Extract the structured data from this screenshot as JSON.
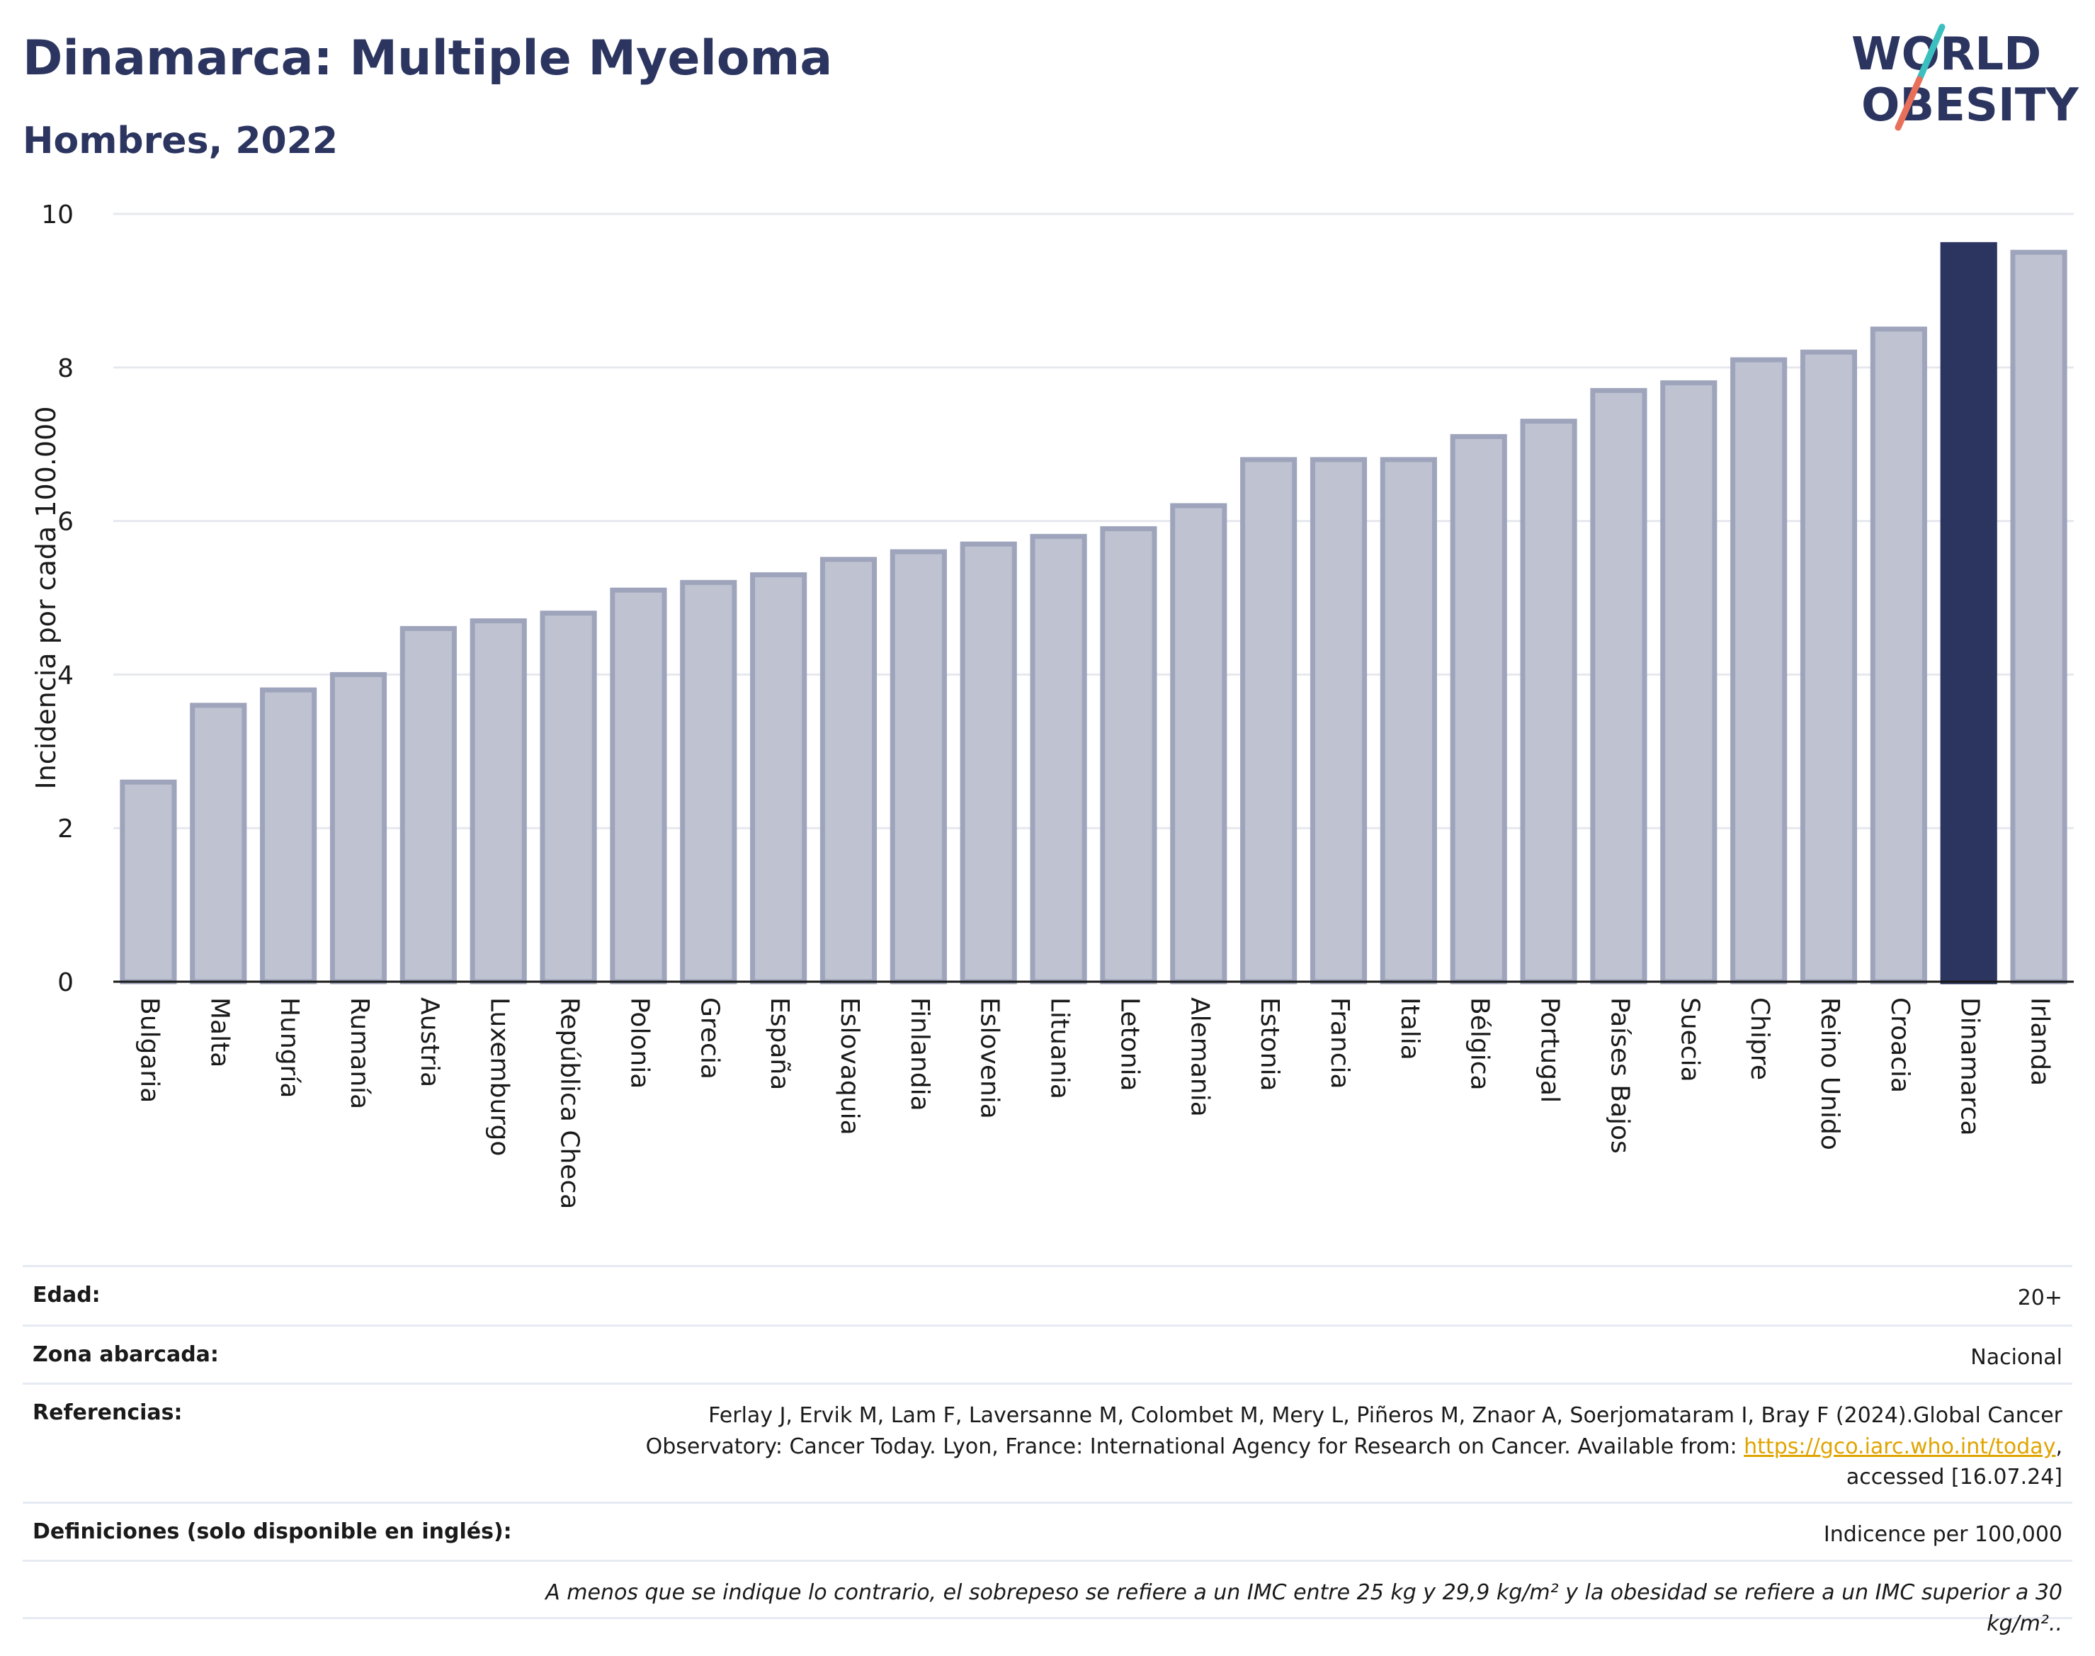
{
  "header": {
    "title": "Dinamarca: Multiple Myeloma",
    "subtitle": "Hombres, 2022"
  },
  "logo": {
    "line1": "WORLD",
    "line2": "OBESITY",
    "colors": {
      "text": "#2b3560",
      "slash_top": "#3bbfbf",
      "slash_bottom": "#e8705a"
    }
  },
  "chart_data": {
    "type": "bar",
    "categories": [
      "Bulgaria",
      "Malta",
      "Hungría",
      "Rumanía",
      "Austria",
      "Luxemburgo",
      "República Checa",
      "Polonia",
      "Grecia",
      "España",
      "Eslovaquia",
      "Finlandia",
      "Eslovenia",
      "Lituania",
      "Letonia",
      "Alemania",
      "Estonia",
      "Francia",
      "Italia",
      "Bélgica",
      "Portugal",
      "Países Bajos",
      "Suecia",
      "Chipre",
      "Reino Unido",
      "Croacia",
      "Dinamarca",
      "Irlanda"
    ],
    "values": [
      2.6,
      3.6,
      3.8,
      4.0,
      4.6,
      4.7,
      4.8,
      5.1,
      5.2,
      5.3,
      5.5,
      5.6,
      5.7,
      5.8,
      5.9,
      6.2,
      6.8,
      6.8,
      6.8,
      7.1,
      7.3,
      7.7,
      7.8,
      8.1,
      8.2,
      8.5,
      9.6,
      9.5
    ],
    "highlight": "Dinamarca",
    "ylabel": "Incidencia por cada 100.000",
    "ylim": [
      0,
      10
    ],
    "yticks": [
      0,
      2,
      4,
      6,
      8,
      10
    ],
    "grid": true,
    "colors": {
      "bar": "#bfc3d1",
      "bar_border": "#9ea4bb",
      "highlight": "#2b3560",
      "grid": "#e6e8ee",
      "axis": "#1a1a1a"
    }
  },
  "info": {
    "age_label": "Edad:",
    "age_value": "20+",
    "area_label": "Zona abarcada:",
    "area_value": "Nacional",
    "refs_label": "Referencias:",
    "refs_line1": "Ferlay J, Ervik M, Lam F, Laversanne M, Colombet M, Mery L, Piñeros M, Znaor A, Soerjomataram I, Bray F (2024).Global Cancer",
    "refs_line2_pre": "Observatory: Cancer Today. Lyon, France: International Agency for Research on Cancer. Available from: ",
    "refs_link": "https://gco.iarc.who.int/today",
    "refs_line2_post": ",",
    "refs_line3": "accessed [16.07.24]",
    "defs_label": "Definiciones (solo disponible en inglés):",
    "defs_value": "Indicence per 100,000",
    "note": "A menos que se indique lo contrario, el sobrepeso se refiere a un IMC entre 25 kg y 29,9 kg/m² y la obesidad se refiere a un IMC superior a 30 kg/m².."
  }
}
